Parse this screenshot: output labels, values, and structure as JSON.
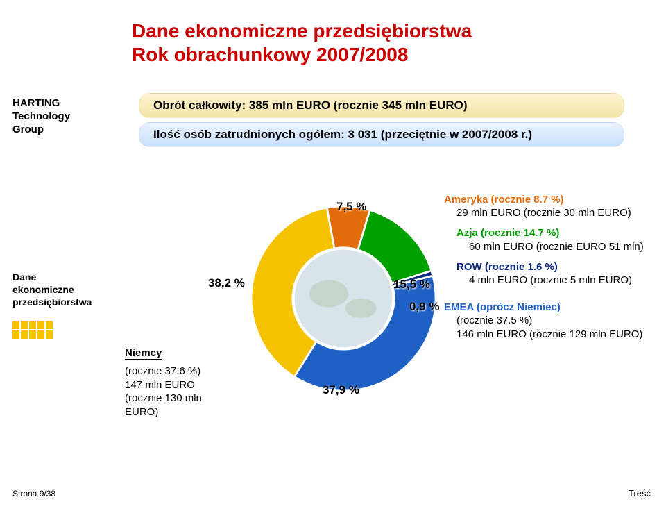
{
  "brand": {
    "line1": "HARTING",
    "line2": "Technology",
    "line3": "Group"
  },
  "sidebar": {
    "label_l1": "Dane",
    "label_l2": "ekonomiczne",
    "label_l3": "przedsiębiorstwa"
  },
  "page_number": "Strona 9/38",
  "footer_link": "Treść",
  "title": {
    "line1": "Dane ekonomiczne przedsiębiorstwa",
    "line2": "Rok obrachunkowy 2007/2008"
  },
  "pills": {
    "turnover": "Obrót całkowity: 385 mln EURO (rocznie 345 mln EURO)",
    "employees": "Ilość osób zatrudnionych ogółem: 3 031 (przeciętnie w 2007/2008 r.)"
  },
  "chart": {
    "type": "donut",
    "inner_radius_ratio": 0.55,
    "background_color": "#ffffff",
    "slice_border": "#ffffff",
    "slice_border_width": 2,
    "slices": [
      {
        "name": "Ameryka",
        "value": 7.5,
        "label": "7,5 %",
        "color": "#e36c0a"
      },
      {
        "name": "Azja",
        "value": 15.5,
        "label": "15,5 %",
        "color": "#00a000"
      },
      {
        "name": "ROW",
        "value": 0.9,
        "label": "0,9 %",
        "color": "#0d2a80"
      },
      {
        "name": "EMEA",
        "value": 37.9,
        "label": "37,9 %",
        "color": "#1f60c4"
      },
      {
        "name": "Niemcy",
        "value": 38.2,
        "label": "38,2 %",
        "color": "#f5c200"
      }
    ],
    "center_image_color": "#d9e3ea",
    "label_fontsize": 17,
    "label_fontweight": "bold",
    "label_color": "#000000"
  },
  "legend_left": {
    "name": "Niemcy",
    "name_color": "#000000",
    "detail_l1": "(rocznie 37.6 %)",
    "detail_l2": "147 mln EURO",
    "detail_l3": "(rocznie 130 mln",
    "detail_l4": "EURO)"
  },
  "legend_right": {
    "items": [
      {
        "head": "Ameryka (rocznie 8.7 %)",
        "head_color": "#e36c0a",
        "body": "29 mln EURO (rocznie 30 mln EURO)"
      },
      {
        "head": "Azja  (rocznie 14.7 %)",
        "head_color": "#00a000",
        "body": "60 mln EURO (rocznie EURO 51 mln)"
      },
      {
        "head": "ROW  (rocznie 1.6  %)",
        "head_color": "#0d2a80",
        "body": "4 mln EURO (rocznie 5 mln EURO)"
      },
      {
        "head": "EMEA (oprócz Niemiec)",
        "head_color": "#1f60c4",
        "body_l1": "(rocznie 37.5 %)",
        "body_l2": "146 mln EURO (rocznie 129 mln EURO)"
      }
    ]
  }
}
